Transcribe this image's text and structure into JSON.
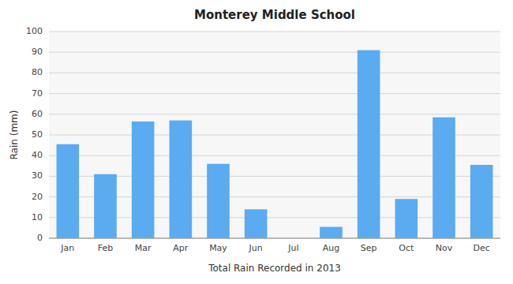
{
  "chart_data": {
    "type": "bar",
    "title": "Monterey Middle School",
    "xlabel": "Total Rain Recorded in 2013",
    "ylabel": "Rain (mm)",
    "categories": [
      "Jan",
      "Feb",
      "Mar",
      "Apr",
      "May",
      "Jun",
      "Jul",
      "Aug",
      "Sep",
      "Oct",
      "Nov",
      "Dec"
    ],
    "values": [
      45.5,
      31,
      56.5,
      57,
      36,
      14,
      0,
      5.5,
      91,
      19,
      58.5,
      35.5
    ],
    "color": "#5aabf0",
    "ylim": [
      0,
      100
    ],
    "yticks": [
      0,
      10,
      20,
      30,
      40,
      50,
      60,
      70,
      80,
      90,
      100
    ],
    "grid": true
  }
}
